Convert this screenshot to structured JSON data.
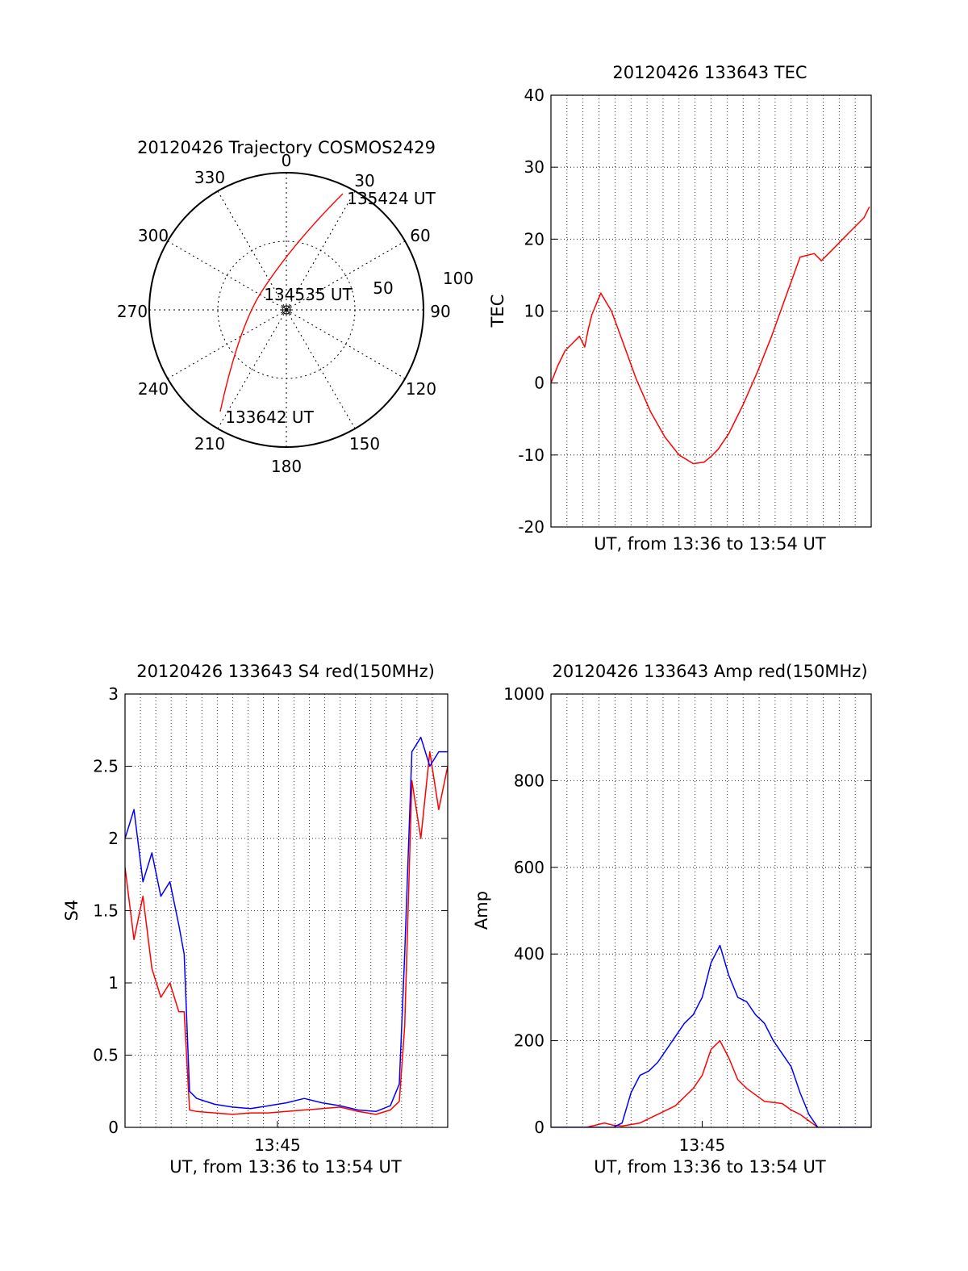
{
  "colors": {
    "primary": "#ff0000",
    "secondary": "#0000ff",
    "axis": "#000000",
    "grid": "#000000"
  },
  "polar": {
    "title": "20120426 Trajectory COSMOS2429",
    "azimuth_labels": [
      "0",
      "30",
      "60",
      "90",
      "120",
      "150",
      "180",
      "210",
      "240",
      "270",
      "300",
      "330"
    ],
    "radial_labels": [
      "50",
      "100"
    ],
    "point_labels": {
      "start": "133642 UT",
      "middle": "134535 UT",
      "end": "135424 UT"
    }
  },
  "chart_data": [
    {
      "type": "line",
      "title": "20120426 133643 TEC",
      "xlabel": "UT, from 13:36 to 13:54 UT",
      "ylabel": "TEC",
      "ylim": [
        -20,
        40
      ],
      "yticks": [
        "40",
        "30",
        "20",
        "10",
        "0",
        "-10",
        "-20"
      ],
      "xlim": [
        0,
        18
      ],
      "grid": true,
      "series": [
        {
          "color": "#ff0000",
          "x": [
            0.0,
            0.4,
            0.8,
            1.2,
            1.6,
            1.9,
            2.1,
            2.3,
            2.8,
            3.4,
            4.0,
            4.8,
            5.6,
            6.4,
            7.2,
            8.0,
            8.6,
            9.0,
            9.4,
            10.0,
            10.8,
            11.6,
            12.4,
            13.2,
            14.0,
            14.8,
            15.2,
            15.6,
            16.0,
            16.4,
            16.8,
            17.2,
            17.6,
            17.9
          ],
          "y": [
            0.0,
            2.5,
            4.5,
            5.5,
            6.5,
            5.0,
            7.5,
            9.5,
            12.5,
            10.0,
            6.0,
            0.5,
            -4.0,
            -7.5,
            -10.0,
            -11.2,
            -11.0,
            -10.2,
            -9.2,
            -7.0,
            -3.0,
            1.5,
            6.5,
            12.0,
            17.5,
            18.0,
            17.0,
            18.0,
            19.0,
            20.0,
            21.0,
            22.0,
            23.0,
            24.5
          ]
        }
      ]
    },
    {
      "type": "line",
      "title": "20120426 133643 S4 red(150MHz)",
      "xlabel": "UT, from 13:36 to 13:54 UT",
      "ylabel": "S4",
      "ylim": [
        0,
        3
      ],
      "yticks": [
        "3",
        "2.5",
        "2",
        "1.5",
        "1",
        "0.5",
        "0"
      ],
      "xlim": [
        0,
        18
      ],
      "xtick_labels": [
        {
          "x": 8.5,
          "label": "13:45"
        }
      ],
      "grid": true,
      "series": [
        {
          "color": "#ff0000",
          "x": [
            0.0,
            0.5,
            1.0,
            1.5,
            2.0,
            2.5,
            3.0,
            3.3,
            3.6,
            4.0,
            5.0,
            6.0,
            7.0,
            8.0,
            9.0,
            10.0,
            11.0,
            12.0,
            13.0,
            14.0,
            14.8,
            15.3,
            15.6,
            16.0,
            16.5,
            17.0,
            17.5,
            18.0
          ],
          "y": [
            1.8,
            1.3,
            1.6,
            1.1,
            0.9,
            1.0,
            0.8,
            0.8,
            0.12,
            0.11,
            0.1,
            0.09,
            0.1,
            0.1,
            0.11,
            0.12,
            0.13,
            0.14,
            0.11,
            0.09,
            0.12,
            0.18,
            0.7,
            2.4,
            2.0,
            2.6,
            2.2,
            2.5
          ]
        },
        {
          "color": "#0000ff",
          "x": [
            0.0,
            0.5,
            1.0,
            1.5,
            2.0,
            2.5,
            3.0,
            3.3,
            3.6,
            4.0,
            5.0,
            6.0,
            7.0,
            8.0,
            9.0,
            10.0,
            11.0,
            12.0,
            13.0,
            14.0,
            14.8,
            15.3,
            15.6,
            16.0,
            16.5,
            17.0,
            17.5,
            18.0
          ],
          "y": [
            2.0,
            2.2,
            1.7,
            1.9,
            1.6,
            1.7,
            1.4,
            1.2,
            0.25,
            0.2,
            0.16,
            0.14,
            0.13,
            0.15,
            0.17,
            0.2,
            0.17,
            0.15,
            0.12,
            0.11,
            0.15,
            0.3,
            1.2,
            2.6,
            2.7,
            2.5,
            2.6,
            2.6
          ]
        }
      ]
    },
    {
      "type": "line",
      "title": "20120426 133643 Amp red(150MHz)",
      "xlabel": "UT, from 13:36 to 13:54 UT",
      "ylabel": "Amp",
      "ylim": [
        0,
        1000
      ],
      "yticks": [
        "1000",
        "800",
        "600",
        "400",
        "200",
        "0"
      ],
      "xlim": [
        0,
        18
      ],
      "xtick_labels": [
        {
          "x": 8.5,
          "label": "13:45"
        }
      ],
      "grid": true,
      "series": [
        {
          "color": "#ff0000",
          "x": [
            0.0,
            1.0,
            2.0,
            2.5,
            3.0,
            3.5,
            4.0,
            5.0,
            6.0,
            7.0,
            7.5,
            8.0,
            8.5,
            9.0,
            9.5,
            10.0,
            10.5,
            11.0,
            12.0,
            13.0,
            13.5,
            14.0,
            14.5,
            15.0,
            16.0,
            17.0,
            18.0
          ],
          "y": [
            0,
            0,
            0,
            5,
            10,
            5,
            3,
            10,
            30,
            50,
            70,
            90,
            120,
            180,
            200,
            160,
            110,
            90,
            60,
            55,
            40,
            30,
            15,
            0,
            0,
            0,
            0
          ]
        },
        {
          "color": "#0000ff",
          "x": [
            0.0,
            1.0,
            2.0,
            3.0,
            3.5,
            4.0,
            4.5,
            5.0,
            5.5,
            6.0,
            6.5,
            7.0,
            7.5,
            8.0,
            8.5,
            9.0,
            9.5,
            10.0,
            10.5,
            11.0,
            11.5,
            12.0,
            12.5,
            13.0,
            13.5,
            14.0,
            14.5,
            15.0,
            16.0,
            17.0,
            18.0
          ],
          "y": [
            0,
            0,
            0,
            0,
            0,
            10,
            80,
            120,
            130,
            150,
            180,
            210,
            240,
            260,
            300,
            380,
            420,
            350,
            300,
            290,
            260,
            240,
            200,
            170,
            140,
            80,
            30,
            0,
            0,
            0,
            0
          ]
        }
      ]
    }
  ]
}
